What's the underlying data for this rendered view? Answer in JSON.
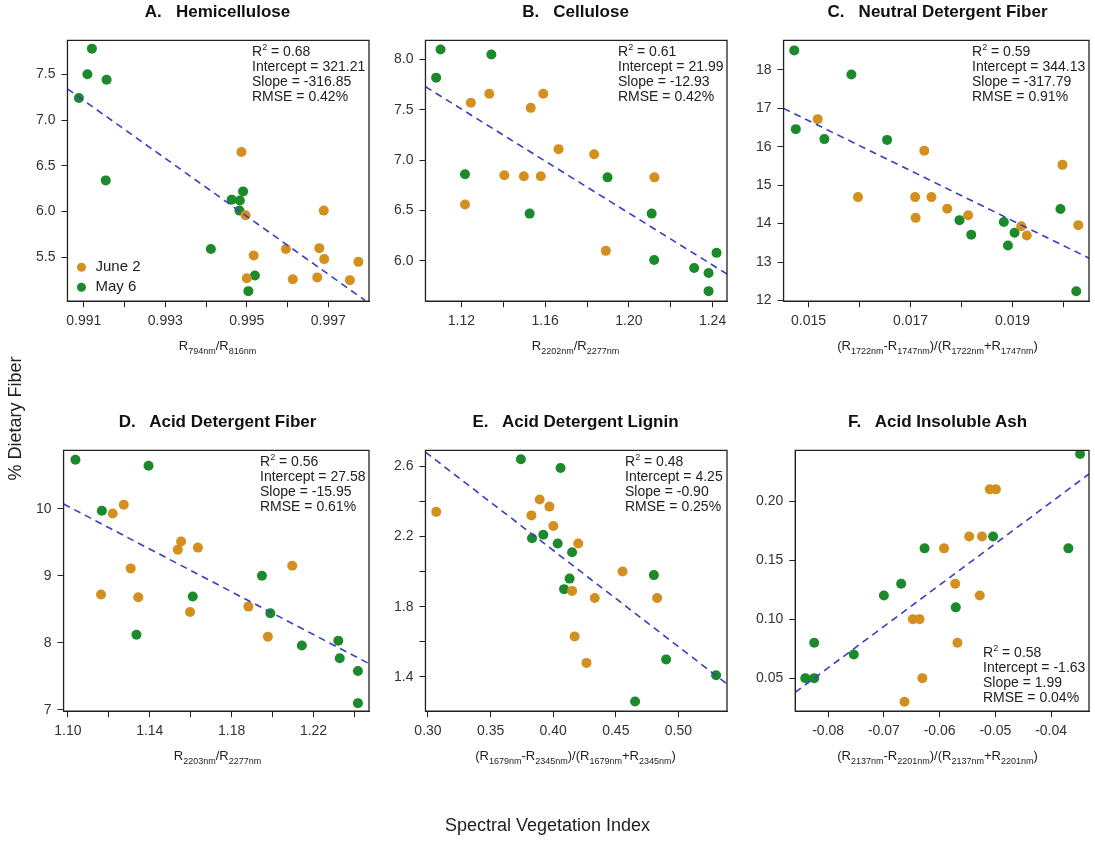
{
  "chart_data": [
    {
      "type": "scatter",
      "title": "A.   Hemicellulose",
      "xlabel": "R$_{794nm}$/R$_{816nm}$",
      "marker": "circle",
      "legend": "bottom left",
      "grid": false,
      "xlim": [
        0.9906,
        0.998
      ],
      "xticks": [
        0.991,
        {
          "value": 0.992,
          "label": null
        },
        0.993,
        {
          "value": 0.994,
          "label": null
        },
        0.995,
        {
          "value": 0.996,
          "label": null
        },
        0.997
      ],
      "ylim": [
        5.02,
        7.87
      ],
      "yticks": [
        5.5,
        {
          "value": 6,
          "label": "6.0"
        },
        6.5,
        {
          "value": 7,
          "label": "7.0"
        },
        7.5
      ],
      "annotations": [
        "R$^{2}$ = 0.68",
        "Intercept = 321.21",
        "Slope = -316.85",
        "RMSE = 0.42%"
      ],
      "series": [
        {
          "name": "June 2",
          "color": "#d4901e",
          "x": [
            0.99487,
            0.99497,
            0.99517,
            0.995,
            0.99596,
            0.99613,
            0.99678,
            0.99689,
            0.9969,
            0.99673,
            0.99753,
            0.99774
          ],
          "values": [
            6.65,
            5.96,
            5.52,
            5.27,
            5.59,
            5.26,
            5.6,
            6.01,
            5.48,
            5.28,
            5.25,
            5.45
          ]
        },
        {
          "name": "May 6",
          "color": "#1a8a2a",
          "x": [
            0.9912,
            0.99109,
            0.99156,
            0.99088,
            0.99154,
            0.99412,
            0.99463,
            0.99483,
            0.99491,
            0.99482,
            0.9952,
            0.99504
          ],
          "values": [
            7.78,
            7.5,
            7.44,
            7.24,
            6.34,
            5.59,
            6.13,
            6.12,
            6.22,
            6.01,
            5.3,
            5.13
          ]
        },
        {
          "type": "line",
          "color": "#3c3cc8",
          "line_style": "dashed",
          "marker": "none",
          "x": [
            0.9906,
            0.9979
          ],
          "values": [
            7.34,
            5.03
          ]
        }
      ]
    },
    {
      "type": "scatter",
      "title": "B.   Cellulose",
      "xlabel": "R$_{2202nm}$/R$_{2277nm}$",
      "marker": "circle",
      "grid": false,
      "xlim": [
        1.1028,
        1.2469
      ],
      "xticks": [
        1.12,
        {
          "value": 1.14,
          "label": null
        },
        1.16,
        {
          "value": 1.18,
          "label": null
        },
        {
          "value": 1.2,
          "label": "1.20"
        },
        {
          "value": 1.22,
          "label": null
        },
        1.24
      ],
      "ylim": [
        5.6,
        8.19
      ],
      "yticks": [
        {
          "value": 6,
          "label": "6.0"
        },
        6.5,
        {
          "value": 7,
          "label": "7.0"
        },
        7.5,
        {
          "value": 8,
          "label": "8.0"
        }
      ],
      "annotations": [
        "R$^{2}$ = 0.61",
        "Intercept = 21.99",
        "Slope = -12.93",
        "RMSE = 0.42%"
      ],
      "series": [
        {
          "color": "#d4901e",
          "x": [
            1.1217,
            1.1245,
            1.1333,
            1.1405,
            1.1498,
            1.1531,
            1.1579,
            1.1591,
            1.1664,
            1.1834,
            1.189,
            1.2122
          ],
          "values": [
            6.56,
            7.57,
            7.66,
            6.85,
            6.84,
            7.52,
            6.84,
            7.66,
            7.11,
            7.06,
            6.1,
            6.83
          ]
        },
        {
          "color": "#1a8a2a",
          "x": [
            1.11,
            1.1079,
            1.1343,
            1.1217,
            1.1526,
            1.1898,
            1.2109,
            1.2121,
            1.2312,
            1.2381,
            1.2381,
            1.2419
          ],
          "values": [
            8.1,
            7.82,
            8.05,
            6.86,
            6.47,
            6.83,
            6.47,
            6.01,
            5.93,
            5.88,
            5.7,
            6.08
          ]
        },
        {
          "type": "line",
          "color": "#3c3cc8",
          "line_style": "dashed",
          "marker": "none",
          "x": [
            1.1028,
            1.2469
          ],
          "values": [
            7.73,
            5.87
          ]
        }
      ]
    },
    {
      "type": "scatter",
      "title": "C.   Neutral Detergent Fiber",
      "xlabel": "(R$_{1722nm}$-R$_{1747nm}$)/(R$_{1722nm}$+R$_{1747nm}$)",
      "marker": "circle",
      "grid": false,
      "xlim": [
        0.01451,
        0.0205
      ],
      "xticks": [
        0.015,
        {
          "value": 0.016,
          "label": null
        },
        0.017,
        {
          "value": 0.018,
          "label": null
        },
        0.019,
        {
          "value": 0.02,
          "label": null
        }
      ],
      "ylim": [
        11.98,
        18.77
      ],
      "yticks": [
        12,
        13,
        14,
        15,
        16,
        17,
        18
      ],
      "annotations": [
        "R$^{2}$ = 0.59",
        "Intercept = 344.13",
        "Slope = -317.79",
        "RMSE = 0.91%"
      ],
      "series": [
        {
          "color": "#d4901e",
          "x": [
            0.01518,
            0.01597,
            0.01709,
            0.0171,
            0.01727,
            0.01741,
            0.01772,
            0.01813,
            0.01917,
            0.01928,
            0.01998,
            0.02029
          ],
          "values": [
            16.72,
            14.69,
            14.69,
            14.15,
            15.9,
            14.69,
            14.39,
            14.22,
            13.93,
            13.69,
            15.53,
            13.96
          ]
        },
        {
          "color": "#1a8a2a",
          "x": [
            0.01472,
            0.01475,
            0.01531,
            0.01584,
            0.01654,
            0.01796,
            0.01819,
            0.01883,
            0.01891,
            0.01904,
            0.01994,
            0.02025
          ],
          "values": [
            18.51,
            16.46,
            16.2,
            17.88,
            16.18,
            14.09,
            13.71,
            14.04,
            13.43,
            13.76,
            14.38,
            12.24
          ]
        },
        {
          "type": "line",
          "color": "#3c3cc8",
          "line_style": "dashed",
          "marker": "none",
          "x": [
            0.01451,
            0.0205
          ],
          "values": [
            17.0,
            13.1
          ]
        }
      ]
    },
    {
      "type": "scatter",
      "title": "D.   Acid Detergent Fiber",
      "xlabel": "R$_{2203nm}$/R$_{2277nm}$",
      "marker": "circle",
      "grid": false,
      "xlim": [
        1.0979,
        1.2471
      ],
      "xticks": [
        {
          "value": 1.1,
          "label": "1.10"
        },
        {
          "value": 1.12,
          "label": null
        },
        1.14,
        {
          "value": 1.16,
          "label": null
        },
        1.18,
        {
          "value": 1.2,
          "label": null
        },
        1.22,
        {
          "value": 1.24,
          "label": null
        }
      ],
      "ylim": [
        6.98,
        10.87
      ],
      "yticks": [
        7,
        8,
        9,
        10
      ],
      "annotations": [
        "R$^{2}$ = 0.56",
        "Intercept = 27.58",
        "Slope = -15.95",
        "RMSE = 0.61%"
      ],
      "series": [
        {
          "color": "#d4901e",
          "x": [
            1.1162,
            1.1219,
            1.1273,
            1.1307,
            1.1344,
            1.1537,
            1.1553,
            1.1635,
            1.1597,
            1.1882,
            1.1977,
            1.2096
          ],
          "values": [
            8.72,
            9.93,
            10.06,
            9.11,
            8.68,
            9.39,
            9.51,
            9.42,
            8.46,
            8.54,
            8.09,
            9.15
          ]
        },
        {
          "color": "#1a8a2a",
          "x": [
            1.1037,
            1.1394,
            1.1166,
            1.1335,
            1.161,
            1.1948,
            1.1989,
            1.2143,
            1.2321,
            1.2328,
            1.2417,
            1.2417
          ],
          "values": [
            10.73,
            10.64,
            9.97,
            8.12,
            8.69,
            9.0,
            8.44,
            7.96,
            8.03,
            7.77,
            7.58,
            7.1
          ]
        },
        {
          "type": "line",
          "color": "#3c3cc8",
          "line_style": "dashed",
          "marker": "none",
          "x": [
            1.0979,
            1.2471
          ],
          "values": [
            10.07,
            7.69
          ]
        }
      ]
    },
    {
      "type": "scatter",
      "title": "E.   Acid Detergent Lignin",
      "xlabel": "(R$_{1679nm}$-R$_{2345nm}$)/(R$_{1679nm}$+R$_{2345nm}$)",
      "marker": "circle",
      "grid": false,
      "xlim": [
        0.298,
        0.5388
      ],
      "xticks": [
        {
          "value": 0.3,
          "label": "0.30"
        },
        0.35,
        {
          "value": 0.4,
          "label": "0.40"
        },
        0.45,
        {
          "value": 0.5,
          "label": "0.50"
        }
      ],
      "ylim": [
        1.205,
        2.69
      ],
      "yticks": [
        1.4,
        {
          "value": 1.6,
          "label": null
        },
        1.8,
        {
          "value": 2.0,
          "label": null
        },
        2.2,
        {
          "value": 2.4,
          "label": null
        },
        2.6
      ],
      "annotations": [
        "R$^{2}$ = 0.48",
        "Intercept = 4.25",
        "Slope = -0.90",
        "RMSE = 0.25%"
      ],
      "series": [
        {
          "color": "#d4901e",
          "x": [
            0.3066,
            0.3826,
            0.3892,
            0.397,
            0.4001,
            0.42,
            0.4151,
            0.4171,
            0.4332,
            0.4266,
            0.4554,
            0.483
          ],
          "values": [
            2.34,
            2.32,
            2.41,
            2.37,
            2.26,
            2.16,
            1.89,
            1.63,
            1.85,
            1.48,
            2.0,
            1.85
          ]
        },
        {
          "color": "#1a8a2a",
          "x": [
            0.3742,
            0.4059,
            0.3831,
            0.3921,
            0.4036,
            0.4151,
            0.4131,
            0.4087,
            0.4804,
            0.4902,
            0.5301,
            0.4654
          ],
          "values": [
            2.64,
            2.59,
            2.19,
            2.21,
            2.16,
            2.11,
            1.96,
            1.9,
            1.98,
            1.5,
            1.41,
            1.26
          ]
        },
        {
          "type": "line",
          "color": "#3c3cc8",
          "line_style": "dashed",
          "marker": "none",
          "x": [
            0.298,
            0.5388
          ],
          "values": [
            2.68,
            1.36
          ]
        }
      ]
    },
    {
      "type": "scatter",
      "title": "F.   Acid Insoluble Ash",
      "xlabel": "(R$_{2137nm}$-R$_{2201nm}$)/(R$_{2137nm}$+R$_{2201nm}$)",
      "marker": "circle",
      "grid": false,
      "xlim": [
        -0.0859,
        -0.0332
      ],
      "xticks": [
        -0.08,
        -0.07,
        -0.06,
        -0.05,
        -0.04
      ],
      "ylim": [
        0.022,
        0.243
      ],
      "yticks": [
        0.05,
        {
          "value": 0.1,
          "label": "0.10"
        },
        0.15,
        {
          "value": 0.2,
          "label": "0.20"
        }
      ],
      "annotations": [
        "R$^{2}$ = 0.58",
        "Intercept = -1.63",
        "Slope = 1.99",
        "RMSE = 0.04%"
      ],
      "series": [
        {
          "color": "#d4901e",
          "x": [
            -0.0663,
            -0.0648,
            -0.0636,
            -0.0631,
            -0.0592,
            -0.0572,
            -0.0568,
            -0.0547,
            -0.0528,
            -0.0524,
            -0.051,
            -0.0499
          ],
          "values": [
            0.03,
            0.1,
            0.1,
            0.05,
            0.16,
            0.13,
            0.08,
            0.17,
            0.12,
            0.17,
            0.21,
            0.21
          ]
        },
        {
          "color": "#1a8a2a",
          "x": [
            -0.0841,
            -0.0825,
            -0.0825,
            -0.0754,
            -0.07,
            -0.0669,
            -0.0627,
            -0.0571,
            -0.0504,
            -0.0369,
            -0.0348
          ],
          "values": [
            0.05,
            0.05,
            0.08,
            0.07,
            0.12,
            0.13,
            0.16,
            0.11,
            0.17,
            0.16,
            0.24
          ]
        },
        {
          "type": "line",
          "color": "#3c3cc8",
          "line_style": "dashed",
          "marker": "none",
          "x": [
            -0.0859,
            -0.0332
          ],
          "values": [
            0.038,
            0.223
          ]
        }
      ]
    },
    {
      "type": "other",
      "xlabel": "Spectral Vegetation Index",
      "ylabel": "% Dietary Fiber"
    }
  ]
}
